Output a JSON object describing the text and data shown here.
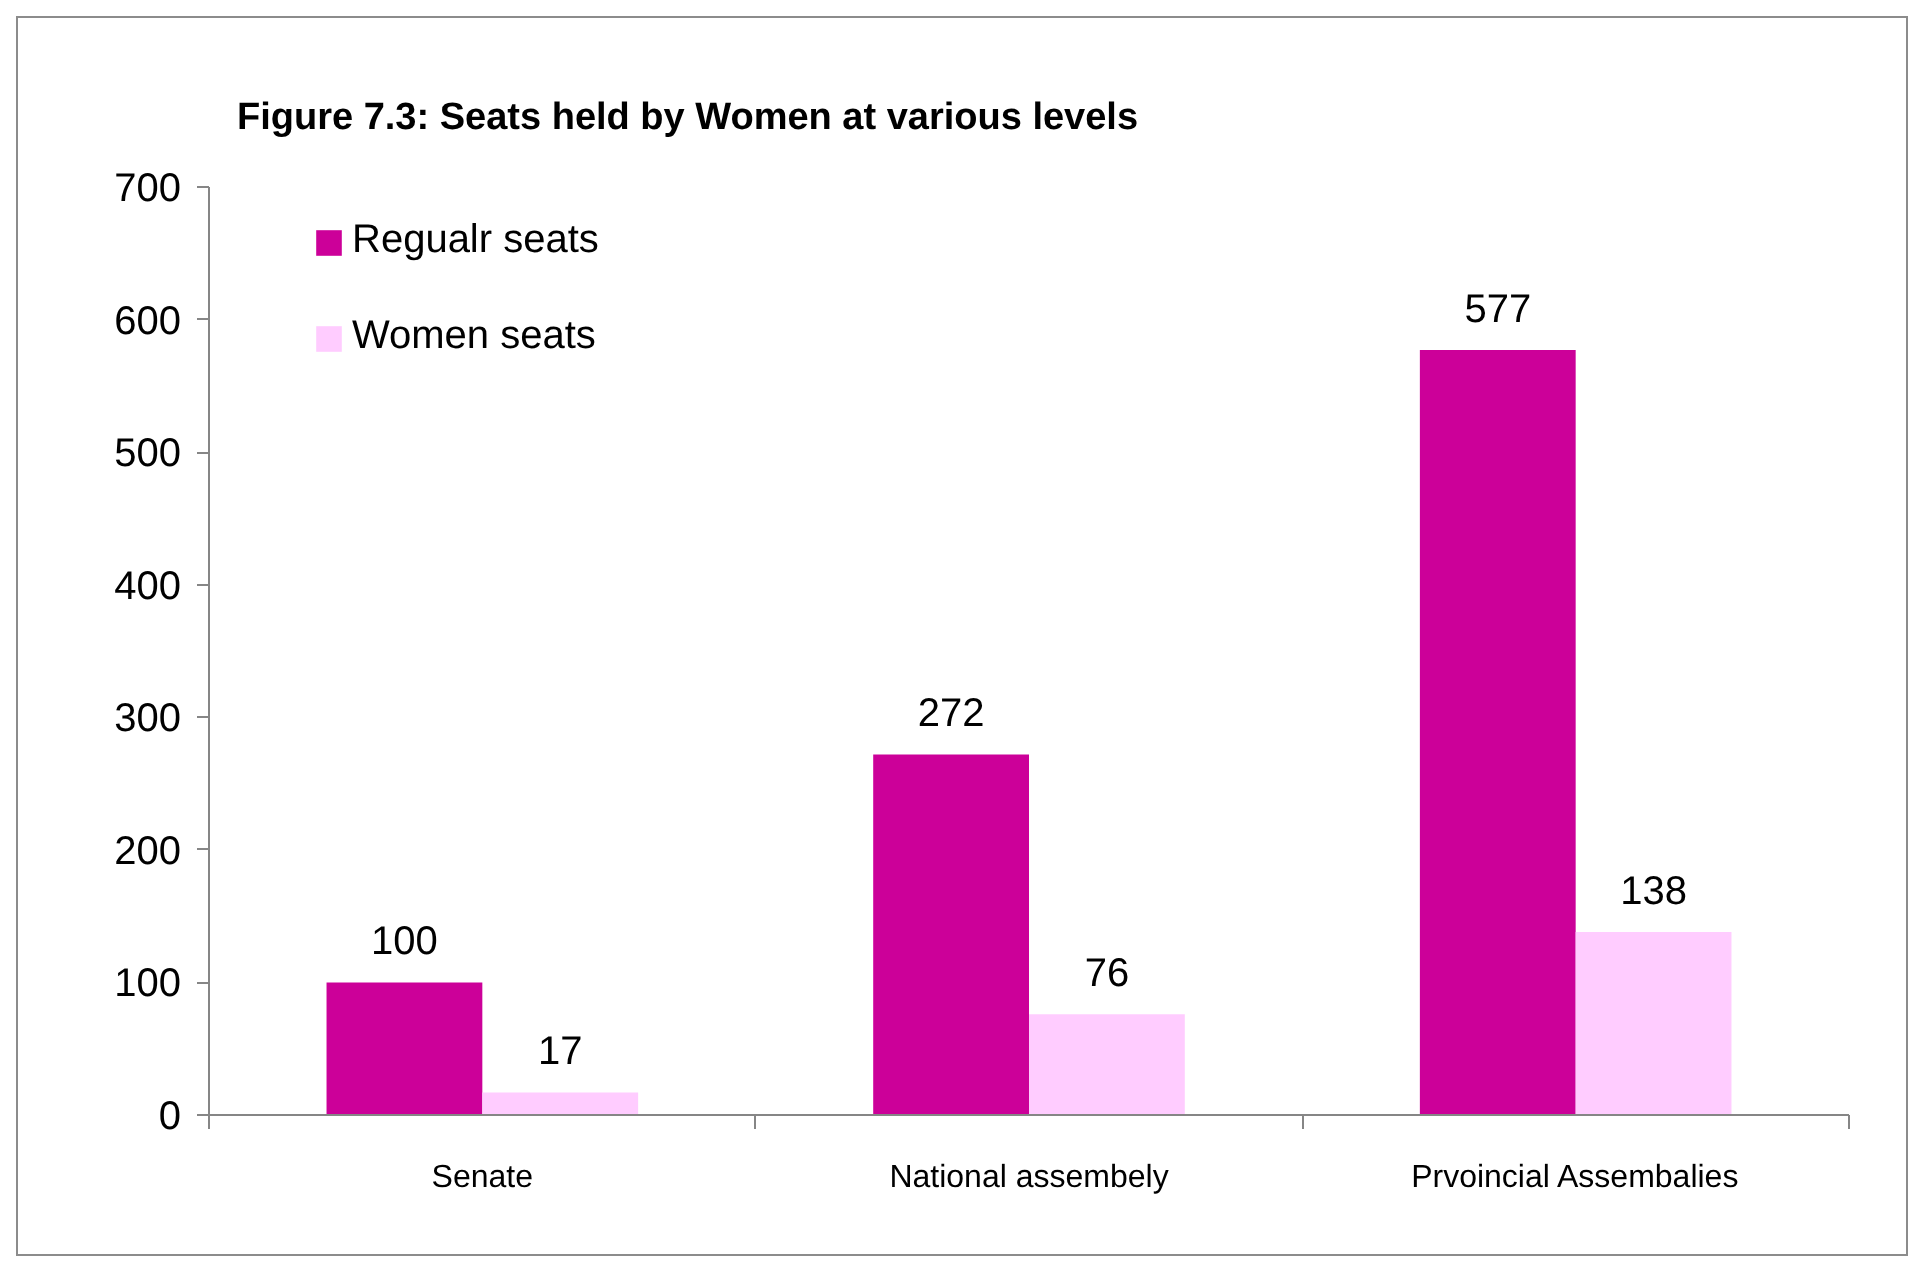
{
  "chart_data": {
    "type": "bar",
    "title": "Figure 7.3: Seats held by Women at various levels",
    "categories": [
      "Senate",
      "National assembely",
      "Prvoincial Assembalies"
    ],
    "series": [
      {
        "name": "Regualr seats",
        "color": "#cc0099",
        "values": [
          100,
          272,
          577
        ]
      },
      {
        "name": "Women seats",
        "color": "#ffccff",
        "values": [
          17,
          76,
          138
        ]
      }
    ],
    "ylim": [
      0,
      700
    ],
    "yticks": [
      0,
      100,
      200,
      300,
      400,
      500,
      600,
      700
    ],
    "grid": false,
    "legend": "top left",
    "data_labels": true
  }
}
